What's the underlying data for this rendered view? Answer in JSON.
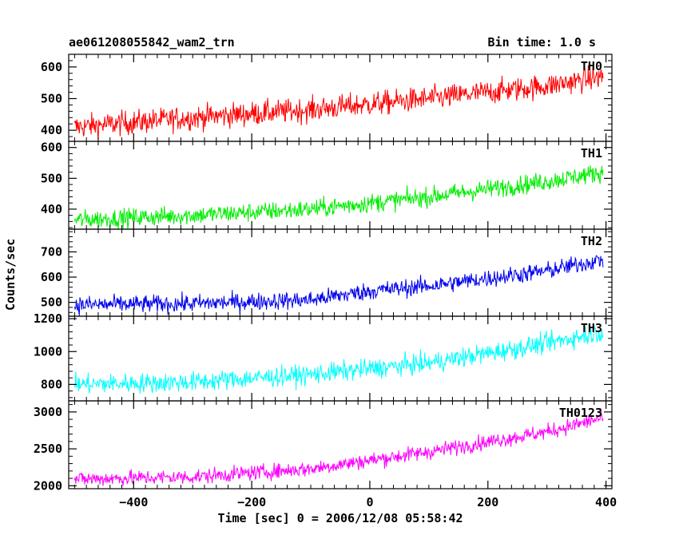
{
  "header": {
    "title": "ae061208055842_wam2_trn",
    "bin_time": "Bin time: 1.0 s"
  },
  "chart_data": {
    "type": "line",
    "xlabel": "Time [sec] 0 = 2006/12/08 05:58:42",
    "ylabel": "Counts/sec",
    "xlim": [
      -510,
      410
    ],
    "x_ticks": [
      -400,
      -200,
      0,
      200,
      400
    ],
    "x_tick_labels": [
      "−400",
      "−200",
      "0",
      "200",
      "400"
    ],
    "x_start": -500,
    "x_end": 395,
    "bin_time_s": 1.0,
    "grid": false,
    "panels": [
      {
        "name": "TH0",
        "color": "#ff0000",
        "ylim": [
          365,
          640
        ],
        "y_ticks": [
          400,
          500,
          600
        ],
        "trend_x": [
          -500,
          -300,
          -100,
          100,
          300,
          395
        ],
        "trend_y": [
          410,
          440,
          465,
          500,
          540,
          570
        ],
        "noise_amplitude": 35
      },
      {
        "name": "TH1",
        "color": "#00ee00",
        "ylim": [
          335,
          620
        ],
        "y_ticks": [
          400,
          500,
          600
        ],
        "trend_x": [
          -500,
          -300,
          -100,
          100,
          300,
          395
        ],
        "trend_y": [
          365,
          380,
          400,
          440,
          490,
          520
        ],
        "noise_amplitude": 28
      },
      {
        "name": "TH2",
        "color": "#0000ee",
        "ylim": [
          445,
          790
        ],
        "y_ticks": [
          500,
          600,
          700
        ],
        "trend_x": [
          -500,
          -300,
          -100,
          0,
          100,
          300,
          395
        ],
        "trend_y": [
          490,
          495,
          510,
          545,
          565,
          625,
          670
        ],
        "noise_amplitude": 32
      },
      {
        "name": "TH3",
        "color": "#00ffff",
        "ylim": [
          700,
          1215
        ],
        "y_ticks": [
          800,
          1000,
          1200
        ],
        "trend_x": [
          -500,
          -300,
          -100,
          100,
          300,
          395
        ],
        "trend_y": [
          800,
          815,
          860,
          930,
          1050,
          1120
        ],
        "noise_amplitude": 55
      },
      {
        "name": "TH0123",
        "color": "#ff00ff",
        "ylim": [
          1960,
          3150
        ],
        "y_ticks": [
          2000,
          2500,
          3000
        ],
        "trend_x": [
          -500,
          -300,
          -100,
          100,
          300,
          395
        ],
        "trend_y": [
          2090,
          2120,
          2230,
          2460,
          2730,
          2920
        ],
        "noise_amplitude": 95
      }
    ]
  }
}
